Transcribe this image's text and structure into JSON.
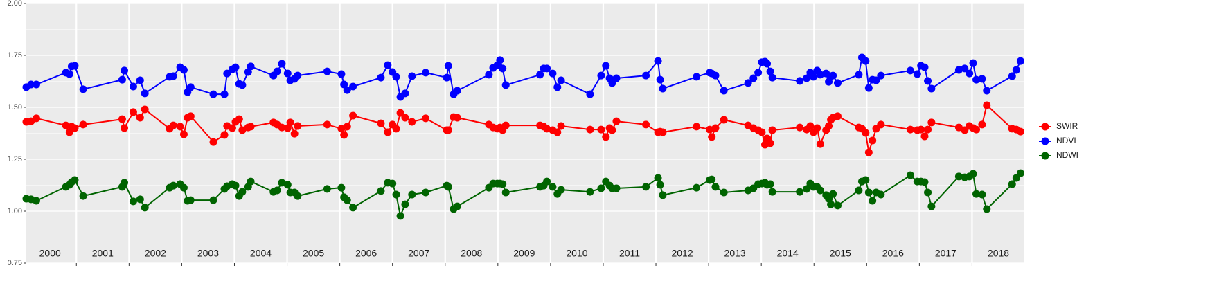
{
  "chart_data": {
    "type": "line",
    "x": [
      2000.05,
      2000.14,
      2000.24,
      2000.8,
      2000.87,
      2000.91,
      2000.97,
      2001.13,
      2001.87,
      2001.91,
      2002.08,
      2002.21,
      2002.3,
      2002.77,
      2002.84,
      2002.97,
      2003.04,
      2003.11,
      2003.17,
      2003.6,
      2003.81,
      2003.86,
      2003.96,
      2004.02,
      2004.09,
      2004.15,
      2004.26,
      2004.31,
      2004.74,
      2004.81,
      2004.9,
      2005.01,
      2005.06,
      2005.14,
      2005.2,
      2005.76,
      2006.03,
      2006.08,
      2006.14,
      2006.25,
      2006.78,
      2006.91,
      2007.0,
      2007.07,
      2007.15,
      2007.24,
      2007.37,
      2007.63,
      2008.03,
      2008.06,
      2008.16,
      2008.23,
      2008.83,
      2008.91,
      2008.99,
      2009.04,
      2009.09,
      2009.15,
      2009.8,
      2009.87,
      2009.93,
      2010.04,
      2010.13,
      2010.2,
      2010.75,
      2010.96,
      2011.05,
      2011.12,
      2011.17,
      2011.25,
      2011.81,
      2012.04,
      2012.08,
      2012.13,
      2012.77,
      2013.02,
      2013.06,
      2013.13,
      2013.29,
      2013.75,
      2013.85,
      2013.94,
      2014.01,
      2014.07,
      2014.11,
      2014.17,
      2014.21,
      2014.73,
      2014.86,
      2014.93,
      2014.99,
      2015.06,
      2015.12,
      2015.23,
      2015.28,
      2015.32,
      2015.36,
      2015.45,
      2015.85,
      2015.91,
      2015.98,
      2016.04,
      2016.11,
      2016.18,
      2016.27,
      2016.83,
      2016.96,
      2017.03,
      2017.1,
      2017.16,
      2017.23,
      2017.75,
      2017.86,
      2017.95,
      2018.02,
      2018.08,
      2018.19,
      2018.28,
      2018.76,
      2018.84,
      2018.92
    ],
    "series": [
      {
        "name": "SWIR",
        "color": "#ff0000",
        "values": [
          1.43,
          1.433,
          1.447,
          1.413,
          1.38,
          1.407,
          1.4,
          1.417,
          1.443,
          1.4,
          1.477,
          1.45,
          1.49,
          1.397,
          1.413,
          1.407,
          1.37,
          1.45,
          1.457,
          1.333,
          1.367,
          1.41,
          1.4,
          1.43,
          1.443,
          1.39,
          1.403,
          1.407,
          1.427,
          1.417,
          1.403,
          1.4,
          1.427,
          1.373,
          1.41,
          1.417,
          1.397,
          1.367,
          1.407,
          1.46,
          1.423,
          1.38,
          1.417,
          1.397,
          1.473,
          1.45,
          1.43,
          1.447,
          1.39,
          1.39,
          1.453,
          1.45,
          1.417,
          1.403,
          1.397,
          1.403,
          1.39,
          1.413,
          1.413,
          1.407,
          1.397,
          1.39,
          1.38,
          1.41,
          1.393,
          1.393,
          1.357,
          1.4,
          1.39,
          1.433,
          1.417,
          1.38,
          1.383,
          1.38,
          1.407,
          1.393,
          1.357,
          1.4,
          1.44,
          1.413,
          1.4,
          1.39,
          1.38,
          1.32,
          1.35,
          1.327,
          1.39,
          1.403,
          1.393,
          1.41,
          1.38,
          1.4,
          1.323,
          1.39,
          1.41,
          1.44,
          1.45,
          1.457,
          1.403,
          1.397,
          1.377,
          1.283,
          1.34,
          1.397,
          1.417,
          1.393,
          1.39,
          1.393,
          1.36,
          1.393,
          1.427,
          1.403,
          1.39,
          1.41,
          1.4,
          1.393,
          1.417,
          1.51,
          1.397,
          1.393,
          1.383
        ]
      },
      {
        "name": "NDVI",
        "color": "#0000ff",
        "values": [
          1.597,
          1.61,
          1.61,
          1.667,
          1.66,
          1.697,
          1.7,
          1.587,
          1.633,
          1.677,
          1.6,
          1.63,
          1.567,
          1.647,
          1.65,
          1.693,
          1.68,
          1.573,
          1.597,
          1.563,
          1.563,
          1.663,
          1.683,
          1.693,
          1.613,
          1.607,
          1.67,
          1.697,
          1.653,
          1.673,
          1.71,
          1.663,
          1.63,
          1.637,
          1.653,
          1.673,
          1.66,
          1.61,
          1.583,
          1.6,
          1.643,
          1.703,
          1.67,
          1.647,
          1.55,
          1.567,
          1.65,
          1.667,
          1.643,
          1.7,
          1.563,
          1.58,
          1.657,
          1.69,
          1.703,
          1.727,
          1.687,
          1.607,
          1.657,
          1.687,
          1.687,
          1.663,
          1.597,
          1.63,
          1.563,
          1.653,
          1.7,
          1.64,
          1.617,
          1.64,
          1.653,
          1.723,
          1.633,
          1.59,
          1.647,
          1.667,
          1.663,
          1.653,
          1.58,
          1.617,
          1.64,
          1.667,
          1.717,
          1.72,
          1.71,
          1.673,
          1.643,
          1.627,
          1.64,
          1.667,
          1.647,
          1.677,
          1.657,
          1.663,
          1.623,
          1.65,
          1.653,
          1.617,
          1.657,
          1.74,
          1.723,
          1.593,
          1.633,
          1.63,
          1.653,
          1.677,
          1.66,
          1.7,
          1.693,
          1.627,
          1.59,
          1.68,
          1.687,
          1.663,
          1.713,
          1.633,
          1.637,
          1.58,
          1.65,
          1.68,
          1.723
        ]
      },
      {
        "name": "NDWI",
        "color": "#006400",
        "values": [
          1.06,
          1.057,
          1.05,
          1.117,
          1.127,
          1.14,
          1.15,
          1.073,
          1.117,
          1.137,
          1.047,
          1.057,
          1.017,
          1.113,
          1.123,
          1.13,
          1.113,
          1.05,
          1.053,
          1.053,
          1.107,
          1.12,
          1.13,
          1.123,
          1.073,
          1.093,
          1.117,
          1.143,
          1.093,
          1.1,
          1.137,
          1.127,
          1.09,
          1.09,
          1.073,
          1.107,
          1.113,
          1.067,
          1.053,
          1.017,
          1.097,
          1.137,
          1.133,
          1.08,
          0.977,
          1.033,
          1.08,
          1.09,
          1.123,
          1.117,
          1.01,
          1.023,
          1.113,
          1.133,
          1.133,
          1.133,
          1.13,
          1.09,
          1.117,
          1.123,
          1.143,
          1.117,
          1.083,
          1.103,
          1.093,
          1.11,
          1.143,
          1.123,
          1.11,
          1.11,
          1.117,
          1.16,
          1.127,
          1.077,
          1.113,
          1.15,
          1.153,
          1.117,
          1.09,
          1.1,
          1.11,
          1.13,
          1.133,
          1.137,
          1.127,
          1.13,
          1.093,
          1.093,
          1.107,
          1.133,
          1.117,
          1.117,
          1.1,
          1.077,
          1.06,
          1.033,
          1.083,
          1.027,
          1.1,
          1.143,
          1.15,
          1.09,
          1.05,
          1.09,
          1.08,
          1.173,
          1.143,
          1.143,
          1.14,
          1.09,
          1.023,
          1.167,
          1.163,
          1.167,
          1.18,
          1.083,
          1.08,
          1.01,
          1.13,
          1.16,
          1.183
        ]
      }
    ],
    "xlim": [
      2000.05,
      2018.98
    ],
    "xticks": [
      {
        "value": 2000.5,
        "label": "2000"
      },
      {
        "value": 2001.5,
        "label": "2001"
      },
      {
        "value": 2002.5,
        "label": "2002"
      },
      {
        "value": 2003.5,
        "label": "2003"
      },
      {
        "value": 2004.5,
        "label": "2004"
      },
      {
        "value": 2005.5,
        "label": "2005"
      },
      {
        "value": 2006.5,
        "label": "2006"
      },
      {
        "value": 2007.5,
        "label": "2007"
      },
      {
        "value": 2008.5,
        "label": "2008"
      },
      {
        "value": 2009.5,
        "label": "2009"
      },
      {
        "value": 2010.5,
        "label": "2010"
      },
      {
        "value": 2011.5,
        "label": "2011"
      },
      {
        "value": 2012.5,
        "label": "2012"
      },
      {
        "value": 2013.5,
        "label": "2013"
      },
      {
        "value": 2014.5,
        "label": "2014"
      },
      {
        "value": 2015.5,
        "label": "2015"
      },
      {
        "value": 2016.5,
        "label": "2016"
      },
      {
        "value": 2017.5,
        "label": "2017"
      },
      {
        "value": 2018.5,
        "label": "2018"
      }
    ],
    "year_boundaries": [
      2001,
      2002,
      2003,
      2004,
      2005,
      2006,
      2007,
      2008,
      2009,
      2010,
      2011,
      2012,
      2013,
      2014,
      2015,
      2016,
      2017,
      2018
    ],
    "ylim": [
      0.75,
      2.0
    ],
    "yticks": [
      {
        "value": 0.75,
        "label": "0.75"
      },
      {
        "value": 1,
        "label": "1.00"
      },
      {
        "value": 1.25,
        "label": "1.25"
      },
      {
        "value": 1.5,
        "label": "1.50"
      },
      {
        "value": 1.75,
        "label": "1.75"
      },
      {
        "value": 2,
        "label": "2.00"
      }
    ],
    "grid": true,
    "legend": "right"
  }
}
